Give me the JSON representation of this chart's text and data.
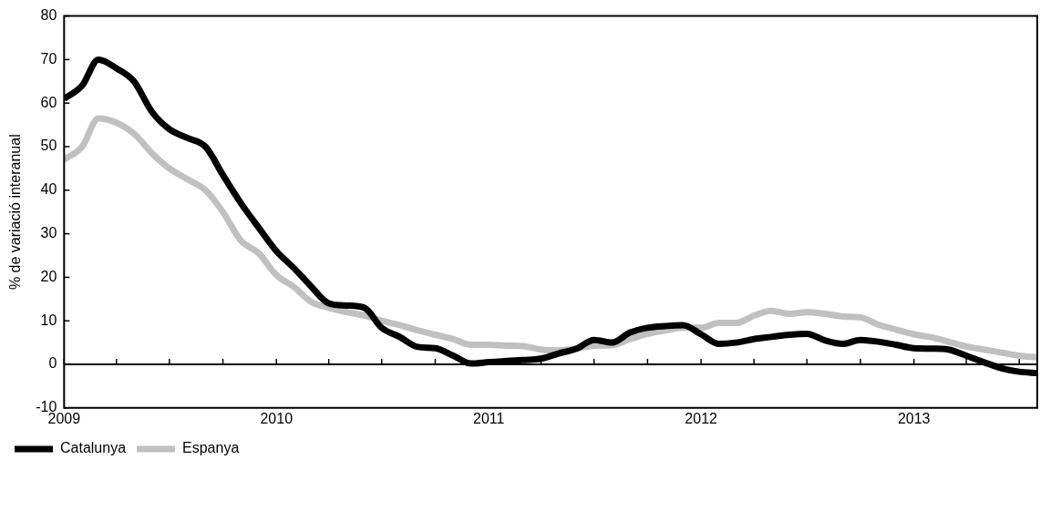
{
  "chart_data": {
    "type": "line",
    "ylabel": "% de variació interanual",
    "x": [
      "2009-01",
      "2009-02",
      "2009-03",
      "2009-04",
      "2009-05",
      "2009-06",
      "2009-07",
      "2009-08",
      "2009-09",
      "2009-10",
      "2009-11",
      "2009-12",
      "2010-01",
      "2010-02",
      "2010-03",
      "2010-04",
      "2010-05",
      "2010-06",
      "2010-07",
      "2010-08",
      "2010-09",
      "2010-10",
      "2010-11",
      "2010-12",
      "2011-01",
      "2011-02",
      "2011-03",
      "2011-04",
      "2011-05",
      "2011-06",
      "2011-07",
      "2011-08",
      "2011-09",
      "2011-10",
      "2011-11",
      "2011-12",
      "2012-01",
      "2012-02",
      "2012-03",
      "2012-04",
      "2012-05",
      "2012-06",
      "2012-07",
      "2012-08",
      "2012-09",
      "2012-10",
      "2012-11",
      "2012-12",
      "2013-01",
      "2013-02",
      "2013-03",
      "2013-04",
      "2013-05",
      "2013-06",
      "2013-07",
      "2013-08"
    ],
    "series": [
      {
        "name": "Catalunya",
        "color": "#000000",
        "values": [
          61,
          64,
          70,
          68,
          65,
          58,
          54,
          52,
          50,
          43.5,
          37,
          31.5,
          26,
          22,
          18,
          14,
          13.5,
          13,
          8.4,
          6.3,
          4,
          3.7,
          2,
          0.2,
          0.5,
          0.8,
          1,
          1.3,
          2.5,
          3.6,
          5.6,
          5,
          7.3,
          8.4,
          8.8,
          9,
          6.9,
          4.7,
          5,
          5.8,
          6.3,
          6.8,
          7,
          5.5,
          4.7,
          5.6,
          5.2,
          4.5,
          3.7,
          3.6,
          3.4,
          2,
          0.5,
          -0.9,
          -1.7,
          -2
        ]
      },
      {
        "name": "Espanya",
        "color": "#c0c0c0",
        "values": [
          47,
          50,
          56.5,
          55.5,
          53,
          48.5,
          45,
          42.5,
          40,
          35,
          28.4,
          25.6,
          20.5,
          17.7,
          14.4,
          13,
          12,
          11.2,
          10,
          9,
          7.8,
          6.8,
          5.8,
          4.5,
          4.5,
          4.3,
          4.2,
          3.4,
          3.2,
          3.6,
          4.3,
          4.4,
          5.8,
          7,
          7.8,
          8.4,
          8.4,
          9.5,
          9.5,
          11.2,
          12.3,
          11.6,
          12,
          11.6,
          11,
          10.8,
          9.1,
          8,
          6.9,
          6.2,
          5.2,
          4.1,
          3.4,
          2.7,
          2,
          1.6
        ]
      }
    ],
    "xlim": [
      "2009-01",
      "2013-08"
    ],
    "xticks": [
      {
        "value": "2009",
        "label": "2009"
      },
      {
        "value": "2009-04",
        "label": null
      },
      {
        "value": "2009-07",
        "label": null
      },
      {
        "value": "2009-10",
        "label": null
      },
      {
        "value": "2010",
        "label": "2010"
      },
      {
        "value": "2010-04",
        "label": null
      },
      {
        "value": "2010-07",
        "label": null
      },
      {
        "value": "2010-10",
        "label": null
      },
      {
        "value": "2011",
        "label": "2011"
      },
      {
        "value": "2011-04",
        "label": null
      },
      {
        "value": "2011-07",
        "label": null
      },
      {
        "value": "2011-10",
        "label": null
      },
      {
        "value": "2012",
        "label": "2012"
      },
      {
        "value": "2012-04",
        "label": null
      },
      {
        "value": "2012-07",
        "label": null
      },
      {
        "value": "2012-10",
        "label": null
      },
      {
        "value": "2013",
        "label": "2013"
      },
      {
        "value": "2013-04",
        "label": null
      },
      {
        "value": "2013-07",
        "label": null
      }
    ],
    "ylim": [
      -10,
      80
    ],
    "yticks": [
      -10,
      0,
      10,
      20,
      30,
      40,
      50,
      60,
      70,
      80
    ],
    "ref_lines": [
      {
        "axis": "y",
        "value": 0
      }
    ],
    "grid": false,
    "legend": "bottom left",
    "marker": "none",
    "line_style": "solid"
  }
}
